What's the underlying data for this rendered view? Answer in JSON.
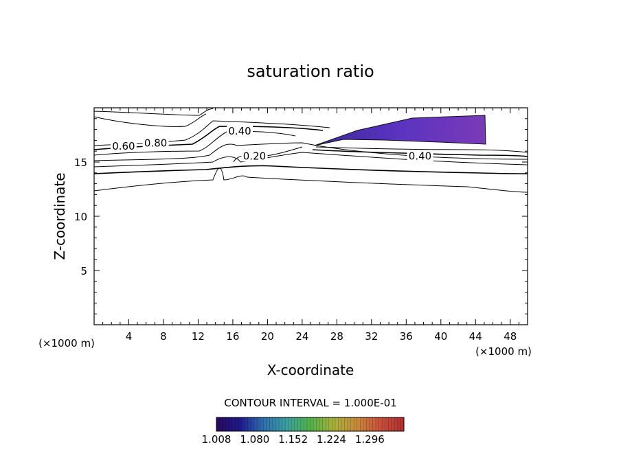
{
  "chart_data": {
    "type": "contour",
    "title": "saturation ratio",
    "xlabel": "X-coordinate",
    "ylabel": "Z-coordinate",
    "x_unit_left": "(×1000 m)",
    "x_unit_right": "(×1000 m)",
    "xlim": [
      0,
      50
    ],
    "ylim": [
      0,
      20
    ],
    "x_ticks": [
      4,
      8,
      12,
      16,
      20,
      24,
      28,
      32,
      36,
      40,
      44,
      48
    ],
    "y_ticks": [
      5,
      10,
      15
    ],
    "contour_labels": [
      {
        "text": "0.60",
        "x": 3.4,
        "y": 16.2
      },
      {
        "text": "0.80",
        "x": 7.1,
        "y": 16.5
      },
      {
        "text": "0.40",
        "x": 16.8,
        "y": 17.6
      },
      {
        "text": "0.20",
        "x": 18.5,
        "y": 15.3
      },
      {
        "text": "0.40",
        "x": 37.6,
        "y": 15.3
      }
    ],
    "contour_interval_text": "CONTOUR INTERVAL = 1.000E-01",
    "colorbar": {
      "min": 1.008,
      "max": 1.36,
      "tick_labels": [
        "1.008",
        "1.080",
        "1.152",
        "1.224",
        "1.296"
      ],
      "colors": [
        "#2a0a5e",
        "#1e1a8c",
        "#2f6fb0",
        "#3aa0a0",
        "#52b34a",
        "#a8b23a",
        "#c88a3a",
        "#c8503a",
        "#b03030"
      ]
    },
    "shaded_region": {
      "description_values": "supersaturated wedge",
      "x_range": [
        25.6,
        45.2
      ],
      "z_range": [
        16.6,
        19.0
      ],
      "color": "#5a2ab0"
    }
  }
}
